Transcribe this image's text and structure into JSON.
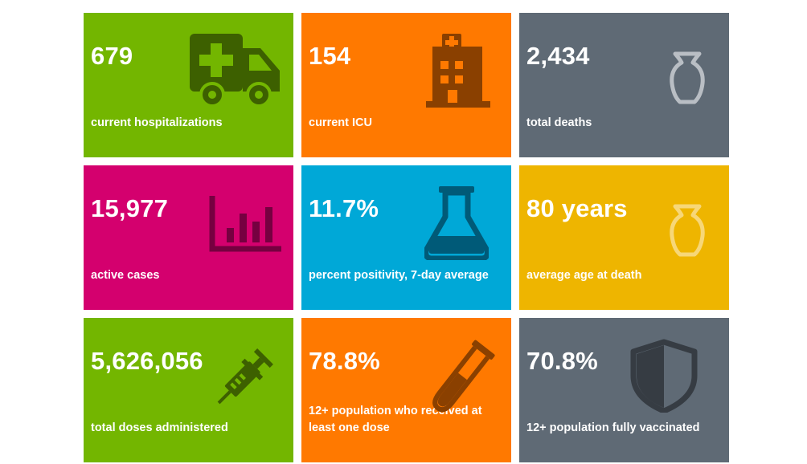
{
  "tiles": [
    {
      "value": "679",
      "label": "current hospitalizations",
      "color": "#73b600",
      "icon": "ambulance-icon"
    },
    {
      "value": "154",
      "label": "current ICU",
      "color": "#ff7900",
      "icon": "hospital-icon"
    },
    {
      "value": "2,434",
      "label": "total deaths",
      "color": "#5f6a75",
      "icon": "urn-icon"
    },
    {
      "value": "15,977",
      "label": "active cases",
      "color": "#d4006e",
      "icon": "bar-chart-icon"
    },
    {
      "value": "11.7%",
      "label": "percent positivity, 7-day average",
      "color": "#00a8d7",
      "icon": "flask-icon"
    },
    {
      "value": "80 years",
      "label": "average age at death",
      "color": "#eeb500",
      "icon": "urn-icon"
    },
    {
      "value": "5,626,056",
      "label": "total doses administered",
      "color": "#73b600",
      "icon": "syringe-icon"
    },
    {
      "value": "78.8%",
      "label": "12+ population who received at least one dose",
      "color": "#ff7900",
      "icon": "test-tube-icon"
    },
    {
      "value": "70.8%",
      "label": "12+ population fully vaccinated",
      "color": "#5f6a75",
      "icon": "shield-icon"
    }
  ]
}
